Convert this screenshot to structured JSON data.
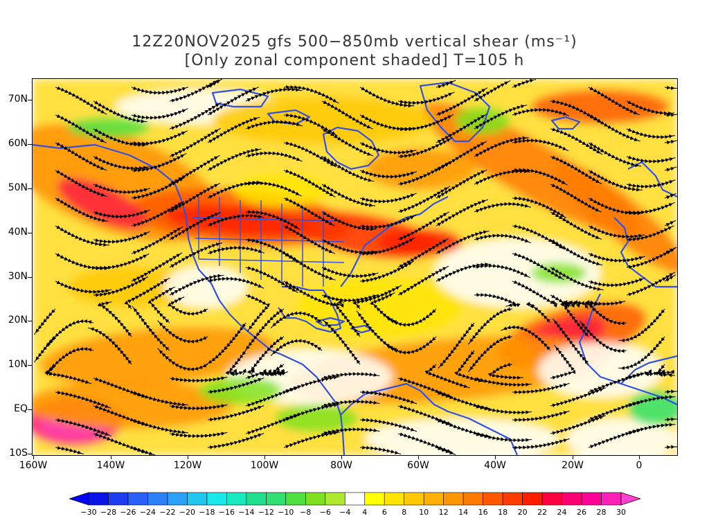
{
  "title": {
    "line1": "12Z20NOV2025 gfs 500−850mb vertical shear (ms⁻¹)",
    "line2": "[Only zonal component shaded] T=105 h"
  },
  "map": {
    "lat_labels": [
      "70N",
      "60N",
      "50N",
      "40N",
      "30N",
      "20N",
      "10N",
      "EQ",
      "10S"
    ],
    "lon_labels": [
      "160W",
      "140W",
      "120W",
      "100W",
      "80W",
      "60W",
      "40W",
      "20W",
      "0"
    ],
    "coastline_color": "#3050e0",
    "streamline_color": "#000000"
  },
  "colorbar": {
    "labels": [
      "−30",
      "−28",
      "−26",
      "−24",
      "−22",
      "−20",
      "−18",
      "−16",
      "−14",
      "−12",
      "−10",
      "−8",
      "−6",
      "−4",
      "4",
      "6",
      "8",
      "10",
      "12",
      "14",
      "16",
      "18",
      "20",
      "22",
      "24",
      "26",
      "28",
      "30"
    ],
    "colors": [
      "#0a14e6",
      "#1e3cf0",
      "#2860f8",
      "#2c80f8",
      "#2aa0f8",
      "#20c8f0",
      "#18e8e8",
      "#18e8c0",
      "#20e090",
      "#30e070",
      "#50e040",
      "#80e020",
      "#b0e830",
      "#ffffff",
      "#ffff00",
      "#ffe400",
      "#ffc800",
      "#ffb000",
      "#ff9600",
      "#ff7a00",
      "#ff5a00",
      "#ff3c00",
      "#ff1e00",
      "#ff0040",
      "#ff0070",
      "#ff0098",
      "#ff20b8"
    ],
    "left_arrow_color": "#0000ff",
    "right_arrow_color": "#ff40d0"
  }
}
